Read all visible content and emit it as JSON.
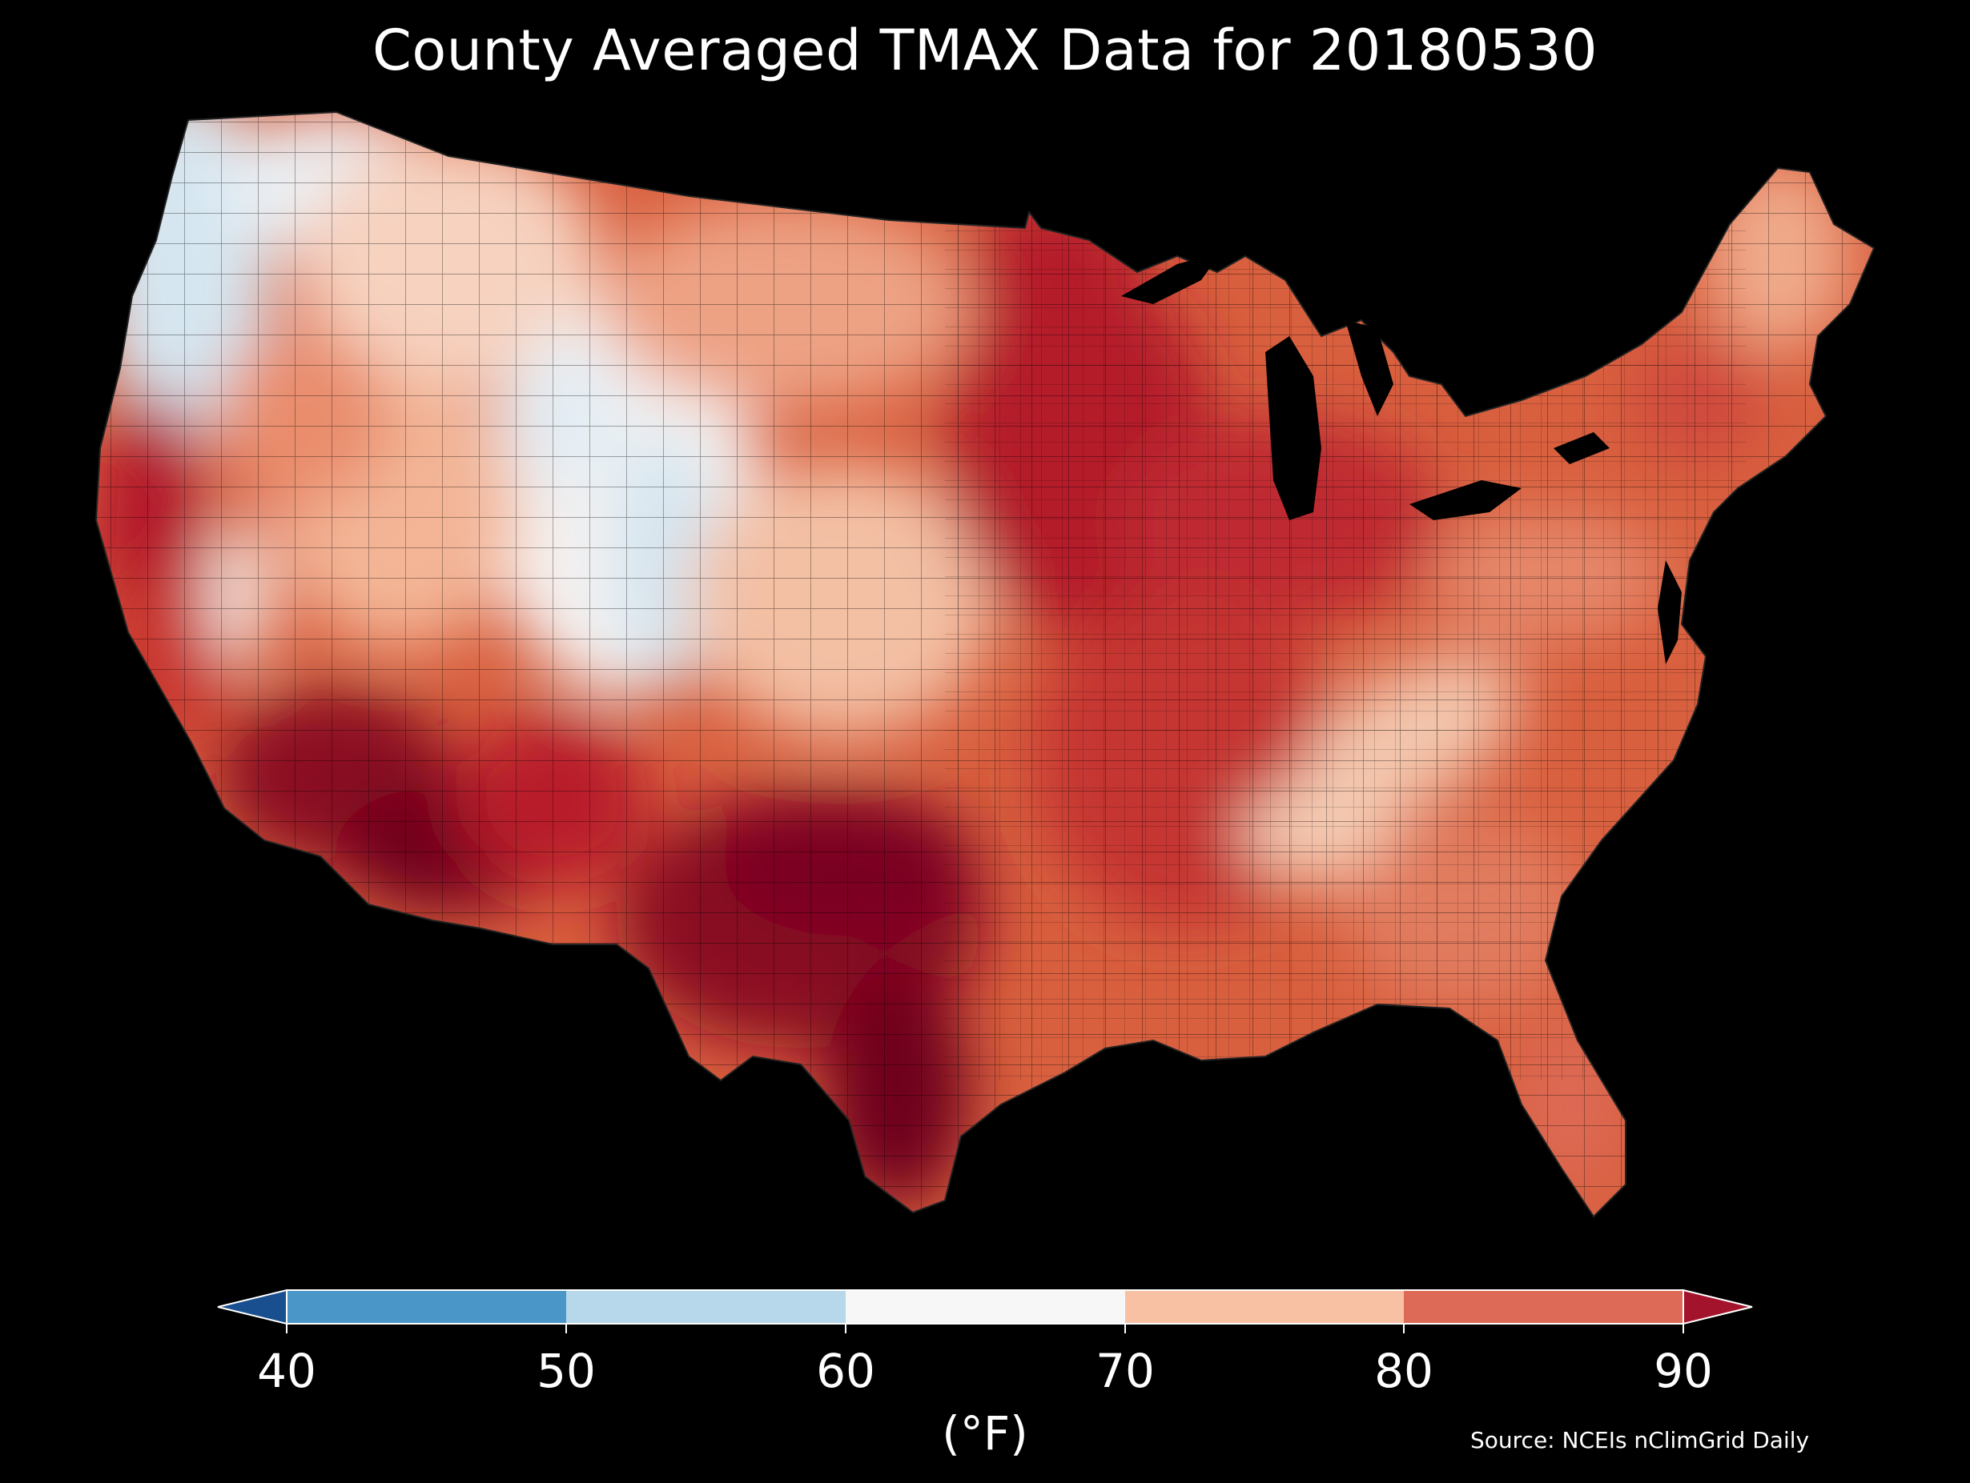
{
  "title": "County Averaged TMAX Data for 20180530",
  "source": "Source: NCEIs nClimGrid Daily",
  "colorbar": {
    "unit_label": "(°F)",
    "ticks": [
      "40",
      "50",
      "60",
      "70",
      "80",
      "90"
    ],
    "extend": "both",
    "bins": [
      {
        "range": "< 40",
        "color": "#1a4f8f"
      },
      {
        "range": "40-50",
        "color": "#4a96c8"
      },
      {
        "range": "50-60",
        "color": "#b6d8ea"
      },
      {
        "range": "60-70",
        "color": "#f7f7f7"
      },
      {
        "range": "70-80",
        "color": "#f8c1a4"
      },
      {
        "range": "80-90",
        "color": "#dd6a56"
      },
      {
        "range": "> 90",
        "color": "#a3142c"
      }
    ]
  },
  "map": {
    "region": "Contiguous United States",
    "units": "county polygons",
    "background": "#000000",
    "palette": {
      "cool_blue": "#d5e6f1",
      "pale": "#f6eeea",
      "light_salmon": "#f5c7ad",
      "salmon": "#e99d7d",
      "red": "#cf4a3e",
      "dark_red": "#b2182b",
      "maroon": "#7a0020"
    },
    "regions": [
      {
        "name": "Pacific Northwest coast",
        "bin": "50-60"
      },
      {
        "name": "Wyoming / Colorado Rockies",
        "bin": "60-70"
      },
      {
        "name": "Central Valley California",
        "bin": "> 90"
      },
      {
        "name": "Southern Arizona",
        "bin": "> 90"
      },
      {
        "name": "Texas",
        "bin": "> 90"
      },
      {
        "name": "Upper Midwest",
        "bin": "80-90"
      },
      {
        "name": "Southern Appalachians",
        "bin": "70-80"
      },
      {
        "name": "Northeast",
        "bin": "80-90"
      },
      {
        "name": "Florida",
        "bin": "80-90"
      }
    ]
  }
}
